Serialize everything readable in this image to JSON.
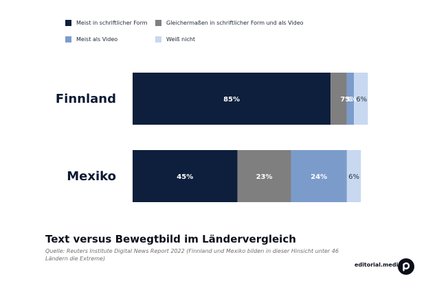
{
  "chart_data": {
    "type": "bar",
    "orientation": "horizontal",
    "stacked": true,
    "categories": [
      "Finnland",
      "Mexiko"
    ],
    "series": [
      {
        "name": "Meist in schriftlicher Form",
        "color": "#0d1f3c",
        "values": [
          85,
          45
        ],
        "labels": [
          "85%",
          "45%"
        ]
      },
      {
        "name": "Gleichermaßen in schriftlicher Form und als Video",
        "color": "#7f7f7f",
        "values": [
          7,
          23
        ],
        "labels": [
          "7%",
          "23%"
        ]
      },
      {
        "name": "Meist als Video",
        "color": "#7b9ccb",
        "values": [
          3,
          24
        ],
        "labels": [
          "3%",
          "24%"
        ]
      },
      {
        "name": "Weiß nicht",
        "color": "#c7d8f0",
        "values": [
          6,
          6
        ],
        "labels": [
          "6%",
          "6%"
        ]
      }
    ],
    "xlim": [
      0,
      100
    ],
    "grid": false,
    "legend_position": "top-left",
    "title": "Text versus Bewegtbild im Ländervergleich",
    "subtitle": "Quelle: Reuters Institute Digital News Report 2022 (Finnland und Mexiko bilden in dieser Hinsicht unter 46 Ländern die Extreme)"
  },
  "brand": {
    "text": "editorial.media",
    "logo_icon": "editorial-media-logo-icon"
  }
}
